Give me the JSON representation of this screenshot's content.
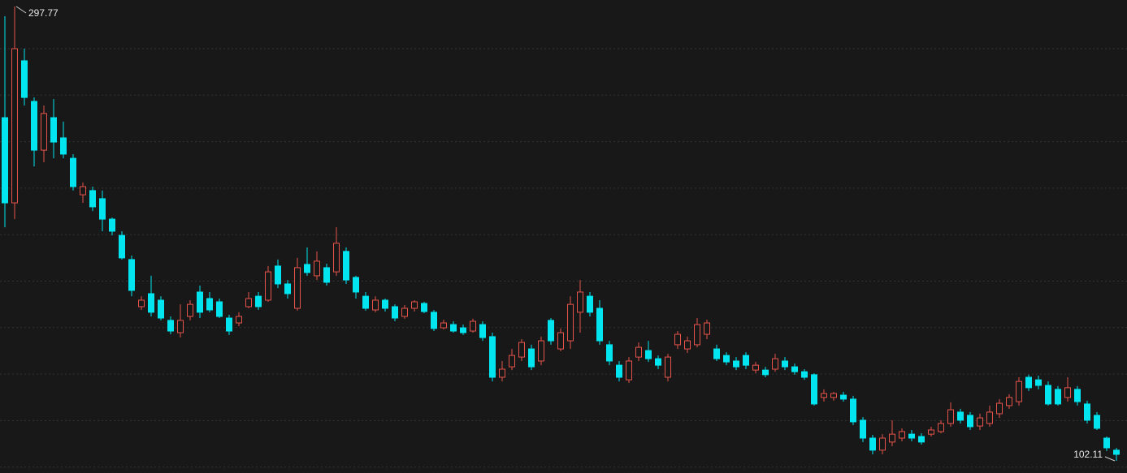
{
  "chart_data": {
    "type": "candlestick",
    "up_color": "#e5534b",
    "down_color": "#00e5f0",
    "ylim": [
      96.87,
      300.57
    ],
    "grid": true,
    "open": [
      249.9,
      213.2,
      274.4,
      256.9,
      235.9,
      249.9,
      241.2,
      232.4,
      216.7,
      218.5,
      215.0,
      206.2,
      199.2,
      188.8,
      168.5,
      174.1,
      171.3,
      162.6,
      157.3,
      164.3,
      174.8,
      172.0,
      170.6,
      163.6,
      161.5,
      168.5,
      173.0,
      171.3,
      186.0,
      178.3,
      167.8,
      186.7,
      181.8,
      185.3,
      183.5,
      192.3,
      181.1,
      173.0,
      167.1,
      171.3,
      168.5,
      164.3,
      167.8,
      169.9,
      166.1,
      159.4,
      160.8,
      159.4,
      158.0,
      160.8,
      155.6,
      138.1,
      142.6,
      146.8,
      150.3,
      145.1,
      162.6,
      150.3,
      153.8,
      166.1,
      173.0,
      167.8,
      152.1,
      143.3,
      137.0,
      146.8,
      149.6,
      146.1,
      138.1,
      152.1,
      150.3,
      152.1,
      156.6,
      150.3,
      147.5,
      145.1,
      147.5,
      141.2,
      141.2,
      141.6,
      145.1,
      142.6,
      140.5,
      139.2,
      129.4,
      129.4,
      130.4,
      128.7,
      119.6,
      111.9,
      106.7,
      110.2,
      111.9,
      113.6,
      112.6,
      113.6,
      114.7,
      118.2,
      123.1,
      121.7,
      117.1,
      118.2,
      122.4,
      125.9,
      127.6,
      138.1,
      137.0,
      134.6,
      132.9,
      129.4,
      132.9,
      126.6,
      121.7,
      111.9,
      106.7
    ],
    "high": [
      293.6,
      297.77,
      279.6,
      258.6,
      255.1,
      257.9,
      248.2,
      234.2,
      222.0,
      220.2,
      218.5,
      206.9,
      201.0,
      190.5,
      173.0,
      181.8,
      173.0,
      164.3,
      169.5,
      171.3,
      177.6,
      174.8,
      172.0,
      165.0,
      166.1,
      174.8,
      174.8,
      186.0,
      188.8,
      180.0,
      189.5,
      194.0,
      192.3,
      187.0,
      202.7,
      194.0,
      181.8,
      174.8,
      173.0,
      172.0,
      169.5,
      169.2,
      171.3,
      170.6,
      167.1,
      162.9,
      162.2,
      160.8,
      163.3,
      162.2,
      157.3,
      145.1,
      150.3,
      154.5,
      152.1,
      155.6,
      163.6,
      159.1,
      173.0,
      180.0,
      174.8,
      171.3,
      153.8,
      145.1,
      146.8,
      153.1,
      153.8,
      147.5,
      148.2,
      158.0,
      155.6,
      163.6,
      162.9,
      152.1,
      148.9,
      146.8,
      148.9,
      144.7,
      142.6,
      148.2,
      146.8,
      144.0,
      141.6,
      139.8,
      132.9,
      131.8,
      131.8,
      130.1,
      121.0,
      113.3,
      113.6,
      119.6,
      116.1,
      115.4,
      114.0,
      116.8,
      119.6,
      127.3,
      124.5,
      123.1,
      122.4,
      125.9,
      128.7,
      130.8,
      138.1,
      139.2,
      138.8,
      136.3,
      134.3,
      138.1,
      134.3,
      128.0,
      123.1,
      112.6,
      107.7
    ],
    "low": [
      202.7,
      206.2,
      255.1,
      228.9,
      230.7,
      232.4,
      232.4,
      218.5,
      213.2,
      209.7,
      201.0,
      199.2,
      188.8,
      173.0,
      167.1,
      164.3,
      162.6,
      156.6,
      155.2,
      162.6,
      163.6,
      166.1,
      163.6,
      156.3,
      160.1,
      167.8,
      167.1,
      170.6,
      176.5,
      172.0,
      166.8,
      181.8,
      180.0,
      177.6,
      181.8,
      178.3,
      172.0,
      166.8,
      166.1,
      166.4,
      162.2,
      163.3,
      166.4,
      165.7,
      158.0,
      158.7,
      157.3,
      156.3,
      157.3,
      153.8,
      136.3,
      136.3,
      141.2,
      145.1,
      141.2,
      143.3,
      152.1,
      149.3,
      150.3,
      157.3,
      164.3,
      152.1,
      143.3,
      136.3,
      135.6,
      145.1,
      144.7,
      141.6,
      136.3,
      150.3,
      148.6,
      151.0,
      154.5,
      145.1,
      143.3,
      141.2,
      141.6,
      139.8,
      138.1,
      140.5,
      141.2,
      139.2,
      137.0,
      125.9,
      127.6,
      128.0,
      127.6,
      117.5,
      110.2,
      104.9,
      104.9,
      108.4,
      110.5,
      110.5,
      109.1,
      112.6,
      114.0,
      116.8,
      118.2,
      115.4,
      115.4,
      116.8,
      120.6,
      124.5,
      125.9,
      132.2,
      132.9,
      125.9,
      125.9,
      127.6,
      125.9,
      118.2,
      115.4,
      106.3,
      102.11
    ],
    "close": [
      213.2,
      279.6,
      258.6,
      235.9,
      251.7,
      239.4,
      234.2,
      220.2,
      220.2,
      211.5,
      206.2,
      201.0,
      189.5,
      175.5,
      171.3,
      166.1,
      163.6,
      158.0,
      162.6,
      169.5,
      166.1,
      167.1,
      164.3,
      158.0,
      164.3,
      172.0,
      168.5,
      183.5,
      178.3,
      174.1,
      185.3,
      183.2,
      188.1,
      179.0,
      195.8,
      180.0,
      174.8,
      167.8,
      171.3,
      167.8,
      163.6,
      167.8,
      170.6,
      166.4,
      159.1,
      161.5,
      158.0,
      157.3,
      162.2,
      155.2,
      138.1,
      141.6,
      147.5,
      153.1,
      142.6,
      153.8,
      153.8,
      157.3,
      169.5,
      174.8,
      166.1,
      153.8,
      145.1,
      138.1,
      145.1,
      151.0,
      146.1,
      143.3,
      146.8,
      156.6,
      153.8,
      160.8,
      161.5,
      146.1,
      144.7,
      142.6,
      143.3,
      143.3,
      139.2,
      146.1,
      142.6,
      140.5,
      138.1,
      126.6,
      131.1,
      131.1,
      128.7,
      118.9,
      111.9,
      106.7,
      111.9,
      113.6,
      114.7,
      111.9,
      110.2,
      115.4,
      118.2,
      124.1,
      119.6,
      116.8,
      120.6,
      123.1,
      126.9,
      129.4,
      136.3,
      133.6,
      134.6,
      126.6,
      126.6,
      133.6,
      127.6,
      119.6,
      116.1,
      107.7,
      104.9
    ]
  }
}
